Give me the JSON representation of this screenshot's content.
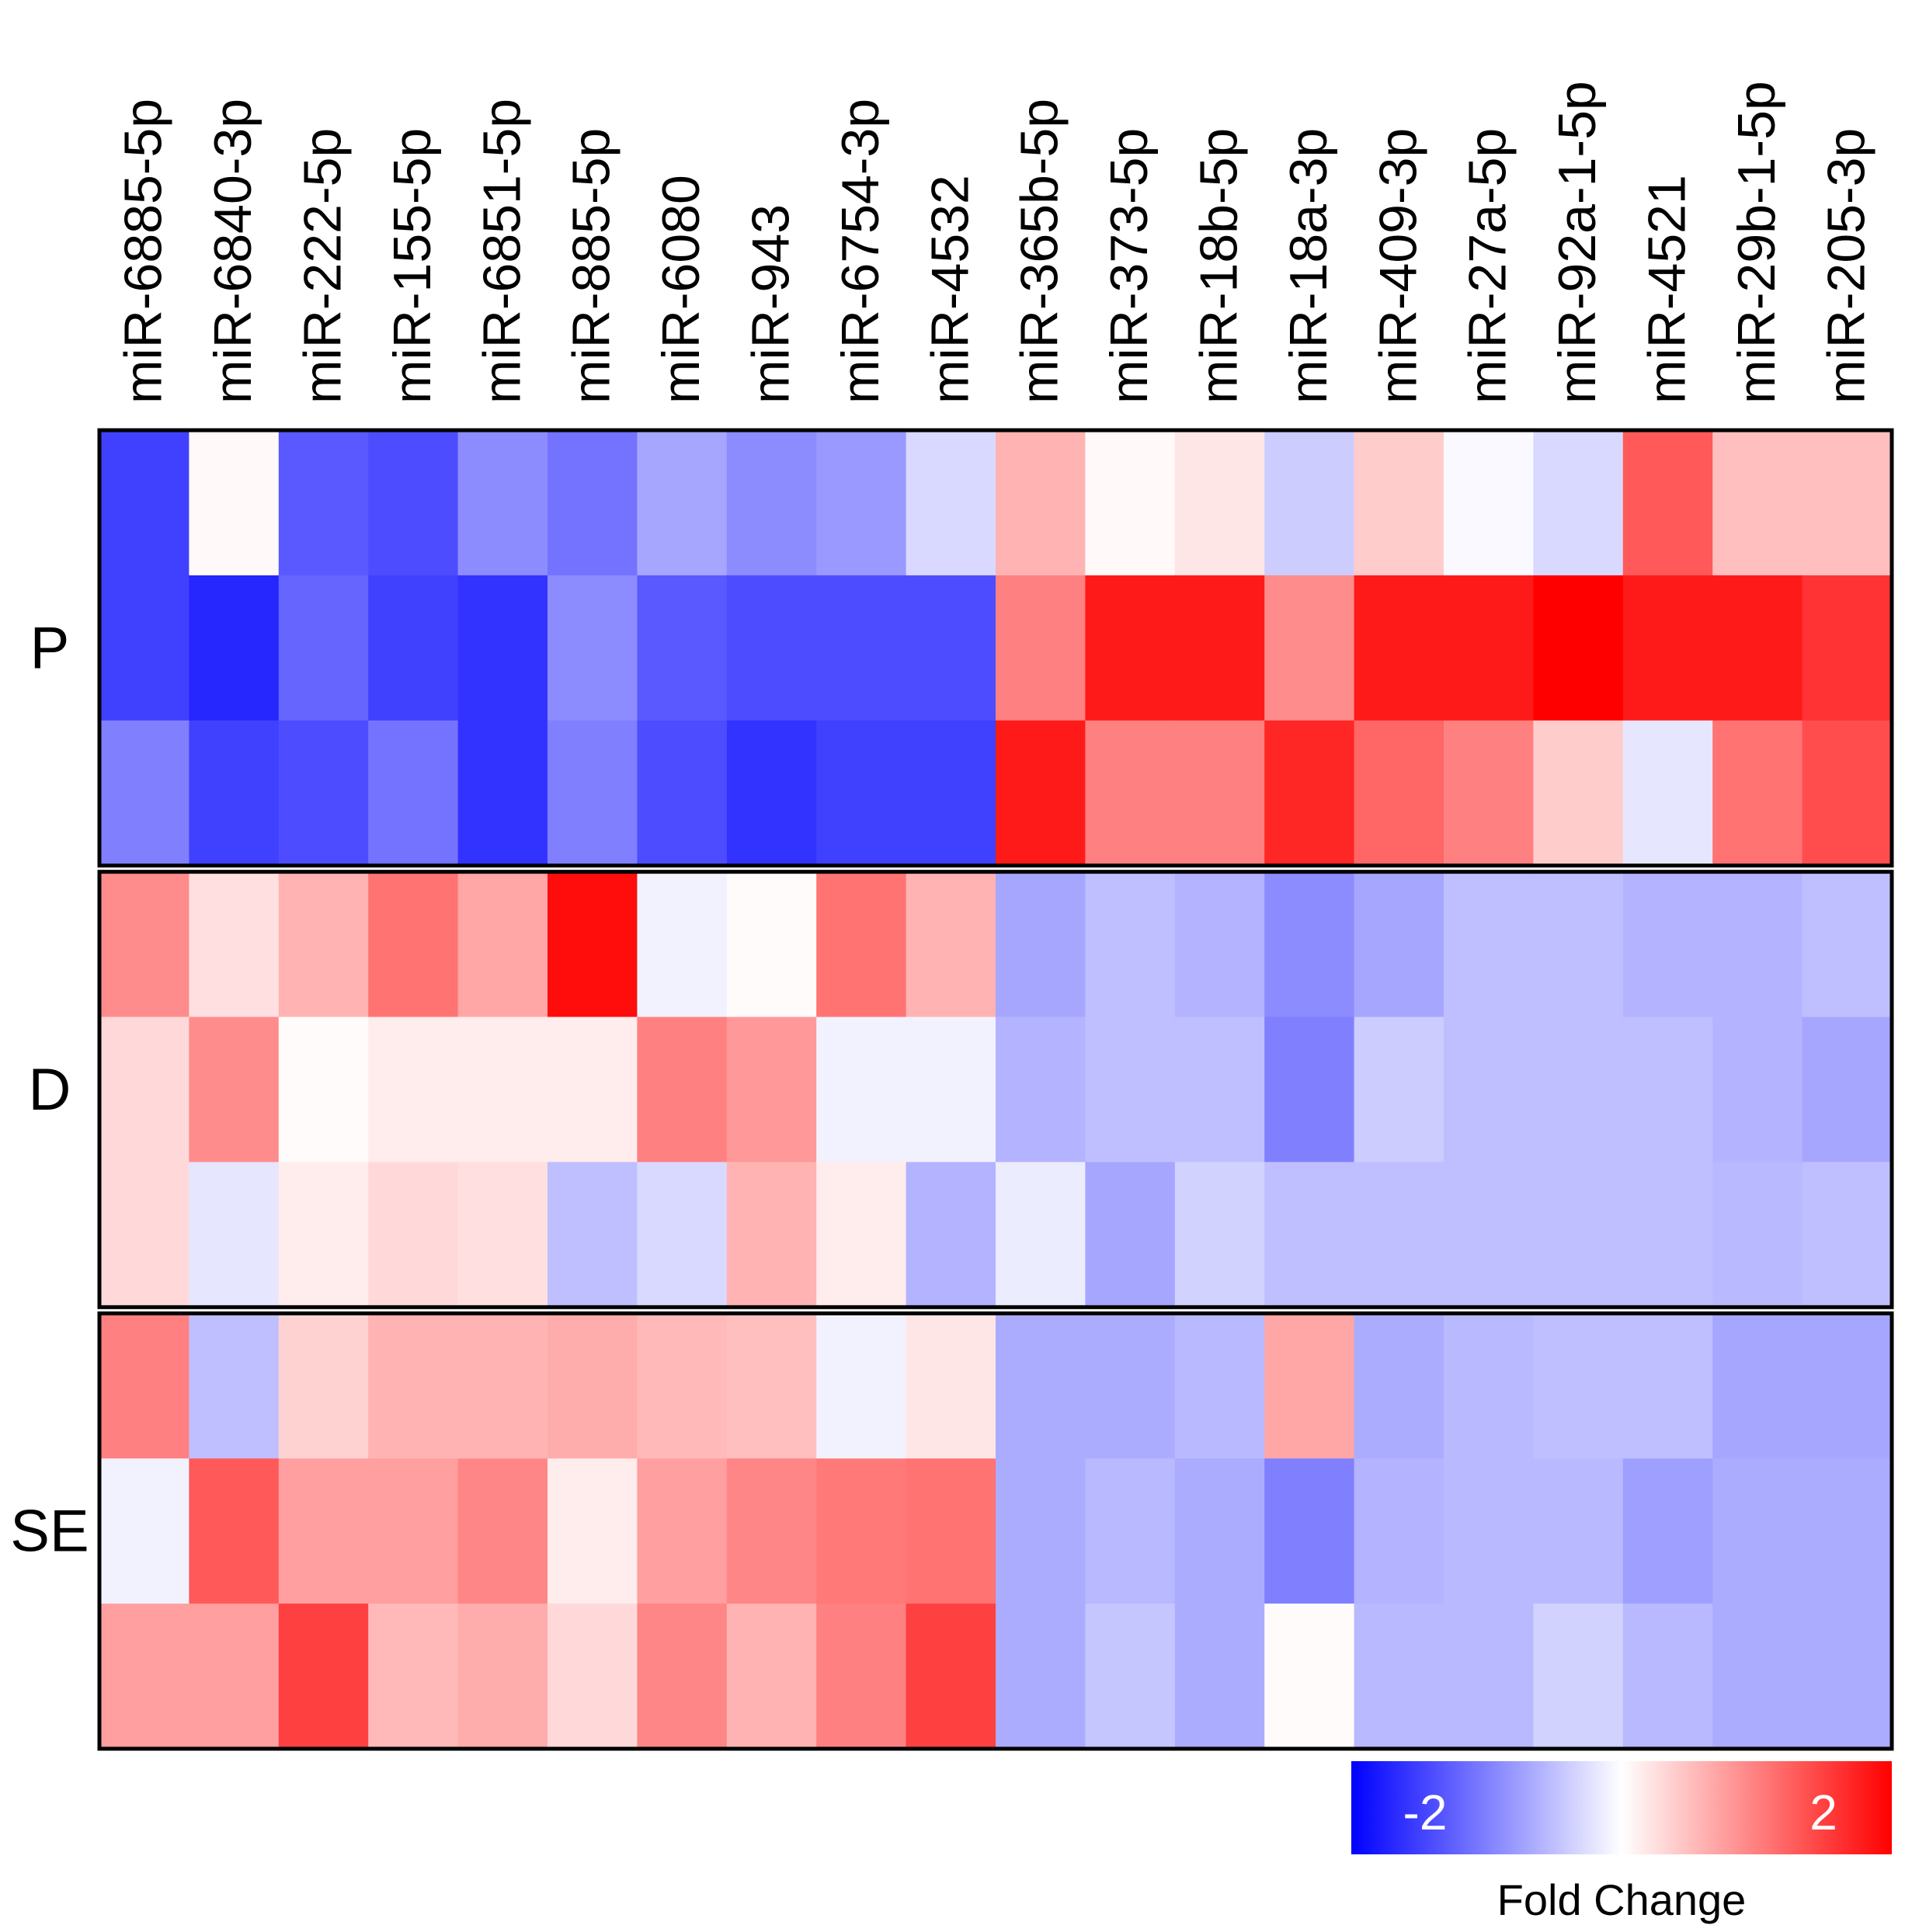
{
  "chart_data": {
    "type": "heatmap",
    "title": "",
    "columns": [
      "miR-6885-5p",
      "miR-6840-3p",
      "miR-222-5p",
      "miR-155-5p",
      "miR-6851-5p",
      "miR-885-5p",
      "miR-6080",
      "miR-943",
      "miR-6754-3p",
      "miR-4532",
      "miR-365b-5p",
      "miR-373-5p",
      "miR-18b-5p",
      "miR-18a-3p",
      "miR-409-3p",
      "miR-27a-5p",
      "miR-92a-1-5p",
      "miR-4521",
      "miR-29b-1-5p",
      "miR-205-3p"
    ],
    "groups": [
      {
        "label": "P",
        "rows": [
          [
            -1.5,
            0.05,
            -1.3,
            -1.4,
            -0.9,
            -1.1,
            -0.7,
            -0.9,
            -0.8,
            -0.3,
            0.6,
            0.05,
            0.2,
            -0.4,
            0.4,
            -0.05,
            -0.3,
            1.3,
            0.5,
            0.5
          ],
          [
            -1.5,
            -1.7,
            -1.2,
            -1.5,
            -1.6,
            -0.9,
            -1.3,
            -1.4,
            -1.4,
            -1.4,
            1.0,
            1.8,
            1.8,
            0.9,
            1.8,
            1.8,
            2.0,
            1.8,
            1.8,
            1.6
          ],
          [
            -1.0,
            -1.5,
            -1.4,
            -1.1,
            -1.6,
            -1.0,
            -1.4,
            -1.6,
            -1.5,
            -1.5,
            1.8,
            1.0,
            1.0,
            1.7,
            1.2,
            1.0,
            0.4,
            -0.2,
            1.1,
            1.4
          ]
        ]
      },
      {
        "label": "D",
        "rows": [
          [
            0.9,
            0.25,
            0.6,
            1.1,
            0.7,
            1.9,
            -0.1,
            0.03,
            1.1,
            0.6,
            -0.7,
            -0.5,
            -0.6,
            -0.9,
            -0.7,
            -0.5,
            -0.5,
            -0.6,
            -0.6,
            -0.5
          ],
          [
            0.3,
            0.9,
            0.03,
            0.15,
            0.15,
            0.15,
            1.0,
            0.8,
            -0.1,
            -0.1,
            -0.6,
            -0.5,
            -0.5,
            -1.0,
            -0.4,
            -0.5,
            -0.5,
            -0.5,
            -0.6,
            -0.7
          ],
          [
            0.3,
            -0.2,
            0.15,
            0.3,
            0.25,
            -0.5,
            -0.3,
            0.6,
            0.15,
            -0.6,
            -0.15,
            -0.7,
            -0.35,
            -0.5,
            -0.5,
            -0.5,
            -0.5,
            -0.5,
            -0.55,
            -0.5
          ]
        ]
      },
      {
        "label": "SE",
        "rows": [
          [
            1.0,
            -0.5,
            0.35,
            0.6,
            0.6,
            0.65,
            0.55,
            0.5,
            -0.1,
            0.2,
            -0.65,
            -0.65,
            -0.55,
            0.7,
            -0.65,
            -0.55,
            -0.5,
            -0.5,
            -0.7,
            -0.7
          ],
          [
            -0.1,
            1.3,
            0.75,
            0.75,
            0.95,
            0.15,
            0.75,
            0.95,
            1.05,
            1.1,
            -0.65,
            -0.55,
            -0.65,
            -1.0,
            -0.6,
            -0.55,
            -0.55,
            -0.75,
            -0.65,
            -0.65
          ],
          [
            0.75,
            0.75,
            1.5,
            0.55,
            0.65,
            0.3,
            0.95,
            0.6,
            1.0,
            1.5,
            -0.65,
            -0.45,
            -0.65,
            0.03,
            -0.55,
            -0.55,
            -0.35,
            -0.55,
            -0.65,
            -0.65
          ]
        ]
      }
    ],
    "colorbar": {
      "min": -2,
      "max": 2,
      "colors": {
        "low": "#0000ff",
        "mid": "#ffffff",
        "high": "#ff0000"
      },
      "tick_labels": [
        "-2",
        "2"
      ],
      "label": "Fold Change",
      "position": "bottom-right"
    }
  }
}
